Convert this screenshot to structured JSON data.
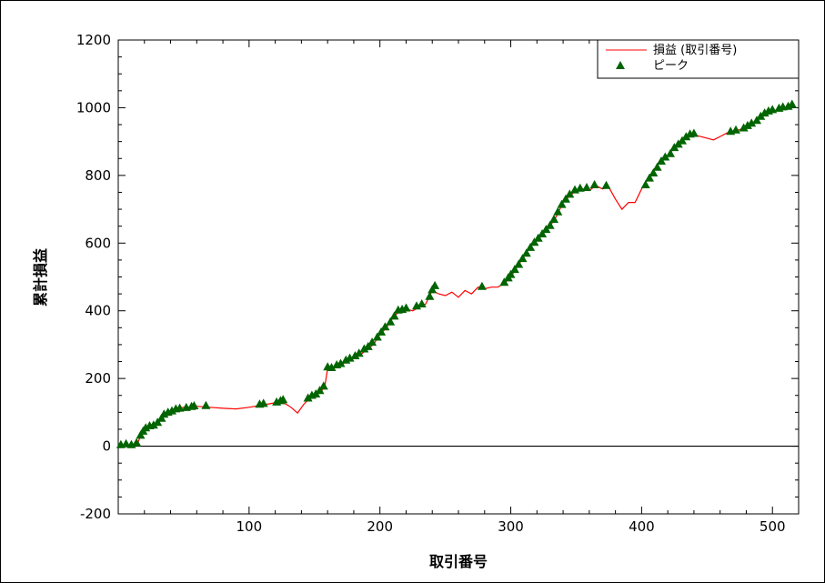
{
  "chart_data": {
    "type": "line",
    "title": "",
    "xlabel": "取引番号",
    "ylabel": "累計損益",
    "xlim": [
      0,
      520
    ],
    "ylim": [
      -200,
      1200
    ],
    "x_ticks": [
      100,
      200,
      300,
      400,
      500
    ],
    "y_ticks": [
      -200,
      0,
      200,
      400,
      600,
      800,
      1000,
      1200
    ],
    "x_tick_labels": [
      "100",
      "200",
      "300",
      "400",
      "500"
    ],
    "y_tick_labels": [
      "-200",
      "0",
      "200",
      "400",
      "600",
      "800",
      "1000",
      "1200"
    ],
    "zero_line": 0,
    "grid": false,
    "legend_position": "top-right",
    "series": [
      {
        "name": "損益 (取引番号)",
        "kind": "line",
        "color": "#ff0000",
        "points": [
          [
            0,
            0
          ],
          [
            5,
            5
          ],
          [
            10,
            -2
          ],
          [
            15,
            10
          ],
          [
            18,
            40
          ],
          [
            22,
            55
          ],
          [
            28,
            60
          ],
          [
            32,
            75
          ],
          [
            36,
            95
          ],
          [
            40,
            100
          ],
          [
            45,
            110
          ],
          [
            50,
            115
          ],
          [
            55,
            115
          ],
          [
            60,
            118
          ],
          [
            70,
            115
          ],
          [
            80,
            112
          ],
          [
            90,
            110
          ],
          [
            100,
            115
          ],
          [
            108,
            120
          ],
          [
            115,
            125
          ],
          [
            122,
            130
          ],
          [
            128,
            125
          ],
          [
            132,
            115
          ],
          [
            137,
            98
          ],
          [
            142,
            125
          ],
          [
            146,
            140
          ],
          [
            150,
            150
          ],
          [
            155,
            160
          ],
          [
            158,
            180
          ],
          [
            160,
            230
          ],
          [
            165,
            230
          ],
          [
            170,
            240
          ],
          [
            175,
            250
          ],
          [
            180,
            260
          ],
          [
            185,
            270
          ],
          [
            190,
            285
          ],
          [
            195,
            300
          ],
          [
            200,
            330
          ],
          [
            205,
            350
          ],
          [
            210,
            380
          ],
          [
            215,
            400
          ],
          [
            220,
            405
          ],
          [
            225,
            400
          ],
          [
            230,
            410
          ],
          [
            235,
            420
          ],
          [
            240,
            460
          ],
          [
            245,
            450
          ],
          [
            250,
            445
          ],
          [
            255,
            455
          ],
          [
            260,
            440
          ],
          [
            265,
            460
          ],
          [
            270,
            450
          ],
          [
            275,
            470
          ],
          [
            280,
            465
          ],
          [
            285,
            470
          ],
          [
            290,
            470
          ],
          [
            295,
            480
          ],
          [
            300,
            500
          ],
          [
            305,
            530
          ],
          [
            310,
            560
          ],
          [
            315,
            590
          ],
          [
            320,
            610
          ],
          [
            325,
            630
          ],
          [
            330,
            650
          ],
          [
            335,
            680
          ],
          [
            340,
            720
          ],
          [
            345,
            740
          ],
          [
            350,
            755
          ],
          [
            355,
            760
          ],
          [
            360,
            755
          ],
          [
            365,
            770
          ],
          [
            370,
            760
          ],
          [
            375,
            765
          ],
          [
            380,
            730
          ],
          [
            385,
            700
          ],
          [
            390,
            720
          ],
          [
            395,
            720
          ],
          [
            400,
            760
          ],
          [
            405,
            790
          ],
          [
            410,
            820
          ],
          [
            415,
            850
          ],
          [
            420,
            860
          ],
          [
            425,
            880
          ],
          [
            430,
            900
          ],
          [
            435,
            915
          ],
          [
            440,
            920
          ],
          [
            445,
            915
          ],
          [
            450,
            910
          ],
          [
            455,
            905
          ],
          [
            460,
            915
          ],
          [
            465,
            925
          ],
          [
            470,
            930
          ],
          [
            475,
            935
          ],
          [
            480,
            945
          ],
          [
            485,
            955
          ],
          [
            490,
            970
          ],
          [
            495,
            985
          ],
          [
            500,
            990
          ],
          [
            505,
            995
          ],
          [
            510,
            1000
          ],
          [
            515,
            1002
          ]
        ]
      },
      {
        "name": "ピーク",
        "kind": "marker",
        "marker": "triangle",
        "color": "#006400",
        "points": [
          [
            2,
            2
          ],
          [
            6,
            5
          ],
          [
            10,
            2
          ],
          [
            14,
            8
          ],
          [
            17,
            30
          ],
          [
            19,
            42
          ],
          [
            21,
            52
          ],
          [
            24,
            58
          ],
          [
            27,
            60
          ],
          [
            30,
            68
          ],
          [
            33,
            80
          ],
          [
            35,
            92
          ],
          [
            38,
            98
          ],
          [
            41,
            102
          ],
          [
            44,
            108
          ],
          [
            47,
            110
          ],
          [
            52,
            112
          ],
          [
            56,
            115
          ],
          [
            58,
            117
          ],
          [
            67,
            118
          ],
          [
            108,
            122
          ],
          [
            111,
            124
          ],
          [
            121,
            128
          ],
          [
            124,
            132
          ],
          [
            126,
            135
          ],
          [
            145,
            140
          ],
          [
            148,
            148
          ],
          [
            151,
            152
          ],
          [
            154,
            162
          ],
          [
            157,
            175
          ],
          [
            160,
            232
          ],
          [
            163,
            230
          ],
          [
            167,
            238
          ],
          [
            170,
            242
          ],
          [
            174,
            252
          ],
          [
            177,
            258
          ],
          [
            181,
            265
          ],
          [
            184,
            272
          ],
          [
            188,
            285
          ],
          [
            191,
            292
          ],
          [
            194,
            305
          ],
          [
            198,
            320
          ],
          [
            201,
            335
          ],
          [
            204,
            350
          ],
          [
            208,
            365
          ],
          [
            211,
            382
          ],
          [
            214,
            400
          ],
          [
            217,
            402
          ],
          [
            220,
            406
          ],
          [
            228,
            412
          ],
          [
            232,
            418
          ],
          [
            238,
            440
          ],
          [
            240,
            460
          ],
          [
            242,
            472
          ],
          [
            278,
            470
          ],
          [
            295,
            482
          ],
          [
            298,
            495
          ],
          [
            300,
            505
          ],
          [
            303,
            520
          ],
          [
            306,
            535
          ],
          [
            309,
            552
          ],
          [
            312,
            568
          ],
          [
            315,
            585
          ],
          [
            318,
            600
          ],
          [
            321,
            612
          ],
          [
            324,
            625
          ],
          [
            327,
            638
          ],
          [
            330,
            650
          ],
          [
            333,
            668
          ],
          [
            336,
            690
          ],
          [
            339,
            712
          ],
          [
            342,
            728
          ],
          [
            345,
            742
          ],
          [
            349,
            755
          ],
          [
            353,
            760
          ],
          [
            358,
            762
          ],
          [
            364,
            770
          ],
          [
            373,
            768
          ],
          [
            403,
            770
          ],
          [
            406,
            790
          ],
          [
            409,
            805
          ],
          [
            412,
            822
          ],
          [
            415,
            840
          ],
          [
            418,
            852
          ],
          [
            422,
            862
          ],
          [
            425,
            880
          ],
          [
            428,
            890
          ],
          [
            431,
            900
          ],
          [
            434,
            912
          ],
          [
            437,
            920
          ],
          [
            440,
            922
          ],
          [
            468,
            928
          ],
          [
            472,
            932
          ],
          [
            478,
            938
          ],
          [
            481,
            945
          ],
          [
            484,
            952
          ],
          [
            488,
            960
          ],
          [
            491,
            972
          ],
          [
            494,
            982
          ],
          [
            497,
            988
          ],
          [
            500,
            992
          ],
          [
            505,
            996
          ],
          [
            508,
            1000
          ],
          [
            512,
            1002
          ],
          [
            515,
            1008
          ]
        ]
      }
    ]
  }
}
